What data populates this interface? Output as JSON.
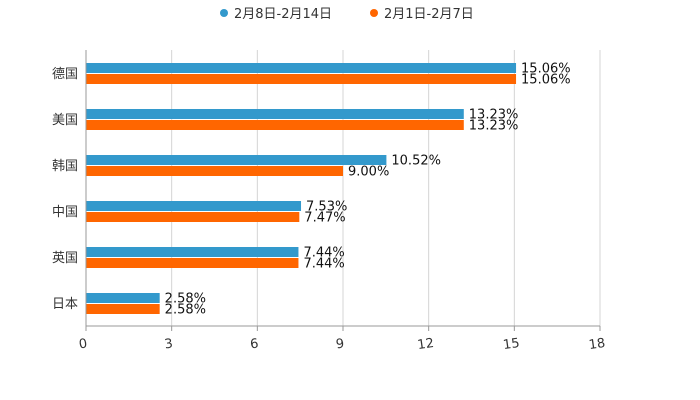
{
  "chart_data": {
    "type": "bar",
    "orientation": "horizontal",
    "categories": [
      "德国",
      "美国",
      "韩国",
      "中国",
      "英国",
      "日本"
    ],
    "series": [
      {
        "name": "2月8日-2月14日",
        "color": "#3399cc",
        "values": [
          15.06,
          13.23,
          10.52,
          7.53,
          7.44,
          2.58
        ],
        "labels": [
          "15.06%",
          "13.23%",
          "10.52%",
          "7.53%",
          "7.44%",
          "2.58%"
        ]
      },
      {
        "name": "2月1日-2月7日",
        "color": "#ff6600",
        "values": [
          15.06,
          13.23,
          9.0,
          7.47,
          7.44,
          2.58
        ],
        "labels": [
          "15.06%",
          "13.23%",
          "9.00%",
          "7.47%",
          "7.44%",
          "2.58%"
        ]
      }
    ],
    "xlim": [
      0,
      18
    ],
    "xticks": [
      "0",
      "3",
      "6",
      "9",
      "12",
      "15",
      "18"
    ],
    "title": "",
    "xlabel": "",
    "ylabel": "",
    "grid": true,
    "legend_position": "top-center"
  }
}
